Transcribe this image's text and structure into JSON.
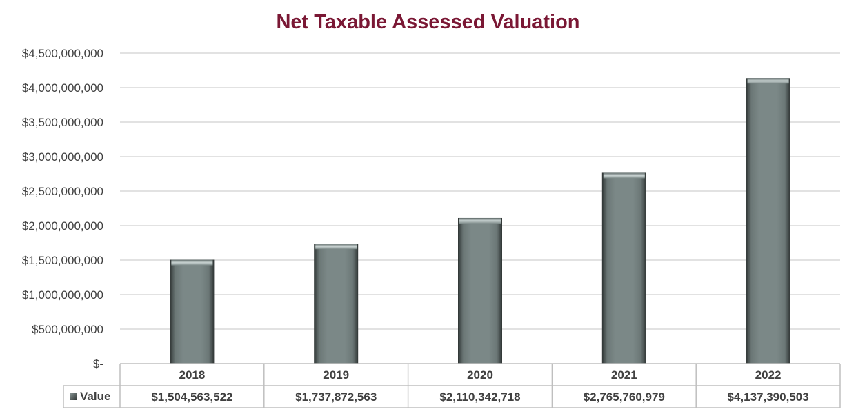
{
  "chart_data": {
    "type": "bar",
    "title": "Net Taxable Assessed Valuation",
    "categories": [
      "2018",
      "2019",
      "2020",
      "2021",
      "2022"
    ],
    "series": [
      {
        "name": "Value",
        "values": [
          1504563522,
          1737872563,
          2110342718,
          2765760979,
          4137390503
        ],
        "value_labels": [
          "$1,504,563,522",
          "$1,737,872,563",
          "$2,110,342,718",
          "$2,765,760,979",
          "$4,137,390,503"
        ]
      }
    ],
    "ylim": [
      0,
      4500000000
    ],
    "y_ticks": [
      0,
      500000000,
      1000000000,
      1500000000,
      2000000000,
      2500000000,
      3000000000,
      3500000000,
      4000000000,
      4500000000
    ],
    "y_tick_labels": [
      "$-",
      "$500,000,000",
      "$1,000,000,000",
      "$1,500,000,000",
      "$2,000,000,000",
      "$2,500,000,000",
      "$3,000,000,000",
      "$3,500,000,000",
      "$4,000,000,000",
      "$4,500,000,000"
    ],
    "grid": true,
    "legend": "data-table",
    "colors": {
      "bar": "#788584",
      "bar_dark": "#3f4847",
      "title": "#7a1734",
      "grid": "#d9d9d9",
      "table_border": "#bfbfbf",
      "text": "#404040"
    }
  }
}
